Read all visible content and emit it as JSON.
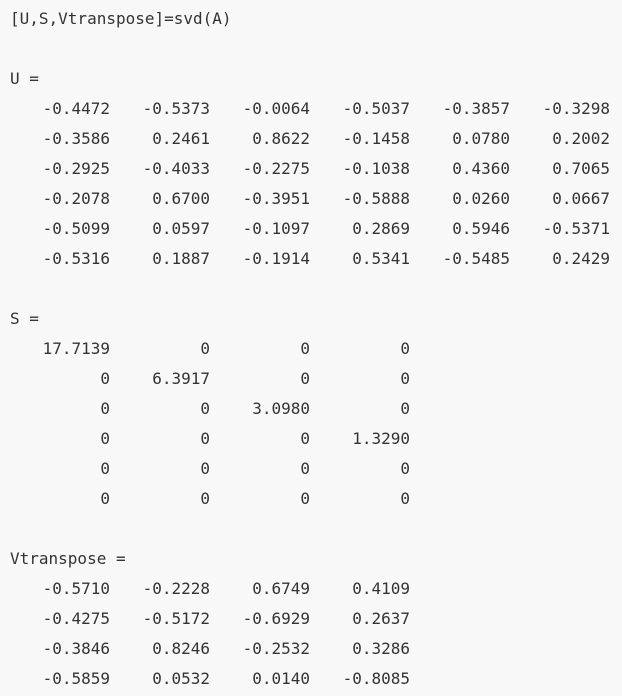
{
  "command": "[U,S,Vtranspose]=svd(A)",
  "matrices": [
    {
      "label": "U =",
      "rows": [
        [
          "-0.4472",
          "-0.5373",
          "-0.0064",
          "-0.5037",
          "-0.3857",
          "-0.3298"
        ],
        [
          "-0.3586",
          "0.2461",
          "0.8622",
          "-0.1458",
          "0.0780",
          "0.2002"
        ],
        [
          "-0.2925",
          "-0.4033",
          "-0.2275",
          "-0.1038",
          "0.4360",
          "0.7065"
        ],
        [
          "-0.2078",
          "0.6700",
          "-0.3951",
          "-0.5888",
          "0.0260",
          "0.0667"
        ],
        [
          "-0.5099",
          "0.0597",
          "-0.1097",
          "0.2869",
          "0.5946",
          "-0.5371"
        ],
        [
          "-0.5316",
          "0.1887",
          "-0.1914",
          "0.5341",
          "-0.5485",
          "0.2429"
        ]
      ]
    },
    {
      "label": "S =",
      "rows": [
        [
          "17.7139",
          "0",
          "0",
          "0"
        ],
        [
          "0",
          "6.3917",
          "0",
          "0"
        ],
        [
          "0",
          "0",
          "3.0980",
          "0"
        ],
        [
          "0",
          "0",
          "0",
          "1.3290"
        ],
        [
          "0",
          "0",
          "0",
          "0"
        ],
        [
          "0",
          "0",
          "0",
          "0"
        ]
      ]
    },
    {
      "label": "Vtranspose =",
      "rows": [
        [
          "-0.5710",
          "-0.2228",
          "0.6749",
          "0.4109"
        ],
        [
          "-0.4275",
          "-0.5172",
          "-0.6929",
          "0.2637"
        ],
        [
          "-0.3846",
          "0.8246",
          "-0.2532",
          "0.3286"
        ],
        [
          "-0.5859",
          "0.0532",
          "0.0140",
          "-0.8085"
        ]
      ]
    }
  ]
}
